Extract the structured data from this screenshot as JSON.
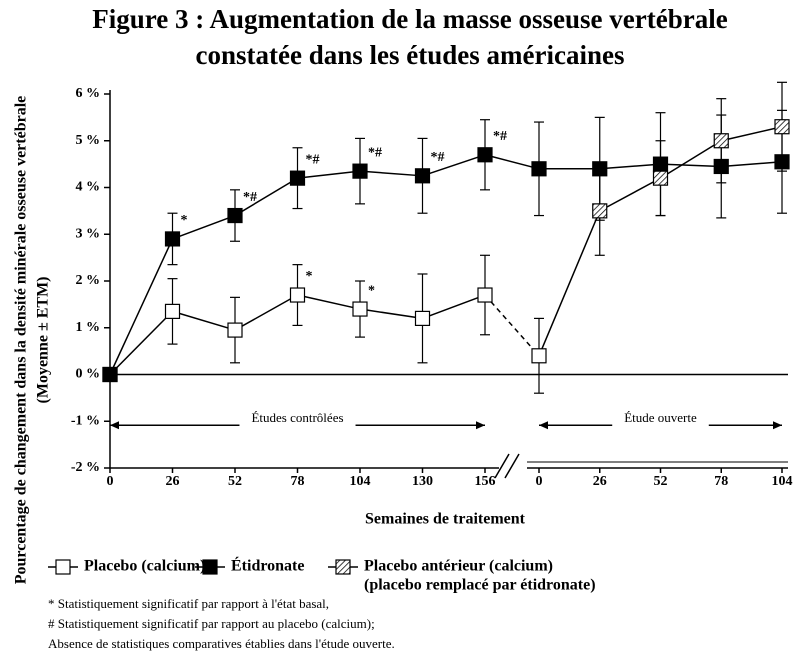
{
  "chart_data": {
    "type": "line",
    "title": [
      "Figure 3 : Augmentation de la masse osseuse vertébrale",
      "constatée dans les études américaines"
    ],
    "ylabel": [
      "Pourcentage de changement dans la densité minérale osseuse vertébrale",
      "(Moyenne ± ETM)"
    ],
    "xlabel": "Semaines de traitement",
    "categories": [
      "0",
      "26",
      "52",
      "78",
      "104",
      "130",
      "156",
      "0",
      "26",
      "52",
      "78",
      "104"
    ],
    "x_break_after": 6,
    "ylim": [
      -2,
      6
    ],
    "yticks": [
      {
        "value": 6,
        "label": "6 %"
      },
      {
        "value": 5,
        "label": "5 %"
      },
      {
        "value": 4,
        "label": "4 %"
      },
      {
        "value": 3,
        "label": "3 %"
      },
      {
        "value": 2,
        "label": "2 %"
      },
      {
        "value": 1,
        "label": "1 %"
      },
      {
        "value": 0,
        "label": "0 %"
      },
      {
        "value": -1,
        "label": "-1 %"
      },
      {
        "value": -2,
        "label": "-2 %"
      }
    ],
    "series": [
      {
        "name": "Placebo (calcium)",
        "marker": "open",
        "color": "#000000",
        "values": [
          0,
          1.35,
          0.95,
          1.7,
          1.4,
          1.2,
          1.7,
          0.4,
          null,
          null,
          null,
          null
        ],
        "errors": [
          null,
          0.7,
          0.7,
          0.65,
          0.6,
          0.95,
          0.85,
          0.8,
          null,
          null,
          null,
          null
        ]
      },
      {
        "name": "Étidronate",
        "marker": "filled",
        "color": "#000000",
        "values": [
          0,
          2.9,
          3.4,
          4.2,
          4.35,
          4.25,
          4.7,
          4.4,
          4.4,
          4.5,
          4.45,
          4.55
        ],
        "errors": [
          null,
          0.55,
          0.55,
          0.65,
          0.7,
          0.8,
          0.75,
          1.0,
          1.1,
          1.1,
          1.1,
          1.1
        ]
      },
      {
        "name": "Placebo antérieur (calcium)",
        "note": "(placebo remplacé par étidronate)",
        "marker": "hatched",
        "color": "#000000",
        "values": [
          null,
          null,
          null,
          null,
          null,
          null,
          null,
          null,
          3.5,
          4.2,
          5.0,
          5.3
        ],
        "errors": [
          null,
          null,
          null,
          null,
          null,
          null,
          null,
          null,
          0.95,
          0.8,
          0.9,
          0.95
        ]
      }
    ],
    "annotations": [
      {
        "text": "*",
        "series": 1,
        "index": 1
      },
      {
        "text": "*#",
        "series": 1,
        "index": 2
      },
      {
        "text": "*#",
        "series": 1,
        "index": 3
      },
      {
        "text": "*#",
        "series": 1,
        "index": 4
      },
      {
        "text": "*#",
        "series": 1,
        "index": 5
      },
      {
        "text": "*#",
        "series": 1,
        "index": 6
      },
      {
        "text": "*",
        "series": 0,
        "index": 3
      },
      {
        "text": "*",
        "series": 0,
        "index": 4
      }
    ],
    "periods": [
      {
        "label": "Études contrôlées",
        "from": 0,
        "to": 6
      },
      {
        "label": "Étude ouverte",
        "from": 7,
        "to": 11
      }
    ],
    "footnotes": [
      "* Statistiquement significatif par rapport à l'état basal,",
      "# Statistiquement significatif par rapport au placebo (calcium);",
      "Absence de statistiques comparatives établies dans l'étude ouverte."
    ]
  }
}
